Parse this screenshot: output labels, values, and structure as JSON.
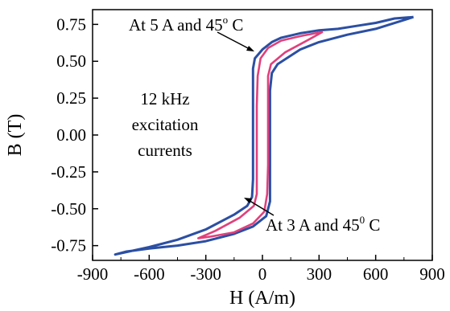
{
  "chart_data": {
    "type": "line",
    "xlabel": "H (A/m)",
    "ylabel": "B (T)",
    "xlim": [
      -900,
      900
    ],
    "ylim": [
      -0.85,
      0.85
    ],
    "xticks": [
      -900,
      -600,
      -300,
      0,
      300,
      600,
      900
    ],
    "xtick_labels": [
      "-900",
      "-600",
      "-300",
      "0",
      "300",
      "600",
      "900"
    ],
    "yticks": [
      -0.75,
      -0.5,
      -0.25,
      0.0,
      0.25,
      0.5,
      0.75
    ],
    "ytick_labels": [
      "-0.75",
      "-0.50",
      "-0.25",
      "0.00",
      "0.25",
      "0.50",
      "0.75"
    ],
    "grid": false,
    "series": [
      {
        "color": "#2b4fa3",
        "points": [
          [
            800,
            0.8
          ],
          [
            700,
            0.79
          ],
          [
            600,
            0.76
          ],
          [
            500,
            0.74
          ],
          [
            400,
            0.72
          ],
          [
            300,
            0.71
          ],
          [
            200,
            0.69
          ],
          [
            100,
            0.66
          ],
          [
            50,
            0.63
          ],
          [
            0,
            0.58
          ],
          [
            -40,
            0.52
          ],
          [
            -50,
            0.45
          ],
          [
            -50,
            0.3
          ],
          [
            -50,
            0.1
          ],
          [
            -50,
            -0.1
          ],
          [
            -50,
            -0.3
          ],
          [
            -55,
            -0.42
          ],
          [
            -80,
            -0.48
          ],
          [
            -150,
            -0.54
          ],
          [
            -300,
            -0.64
          ],
          [
            -450,
            -0.71
          ],
          [
            -600,
            -0.76
          ],
          [
            -780,
            -0.81
          ],
          [
            -720,
            -0.79
          ],
          [
            -600,
            -0.77
          ],
          [
            -450,
            -0.75
          ],
          [
            -300,
            -0.72
          ],
          [
            -150,
            -0.67
          ],
          [
            -50,
            -0.62
          ],
          [
            20,
            -0.55
          ],
          [
            40,
            -0.45
          ],
          [
            40,
            -0.3
          ],
          [
            40,
            -0.1
          ],
          [
            40,
            0.1
          ],
          [
            40,
            0.3
          ],
          [
            50,
            0.42
          ],
          [
            80,
            0.48
          ],
          [
            200,
            0.58
          ],
          [
            300,
            0.63
          ],
          [
            450,
            0.68
          ],
          [
            600,
            0.72
          ],
          [
            800,
            0.8
          ]
        ]
      },
      {
        "color": "#e0407b",
        "points": [
          [
            320,
            0.7
          ],
          [
            200,
            0.67
          ],
          [
            100,
            0.64
          ],
          [
            30,
            0.59
          ],
          [
            -10,
            0.52
          ],
          [
            -25,
            0.4
          ],
          [
            -30,
            0.2
          ],
          [
            -30,
            0.0
          ],
          [
            -30,
            -0.2
          ],
          [
            -30,
            -0.4
          ],
          [
            -45,
            -0.48
          ],
          [
            -120,
            -0.56
          ],
          [
            -250,
            -0.65
          ],
          [
            -340,
            -0.7
          ],
          [
            -280,
            -0.69
          ],
          [
            -150,
            -0.66
          ],
          [
            -50,
            -0.6
          ],
          [
            10,
            -0.52
          ],
          [
            25,
            -0.4
          ],
          [
            30,
            -0.2
          ],
          [
            30,
            0.0
          ],
          [
            30,
            0.2
          ],
          [
            30,
            0.4
          ],
          [
            45,
            0.48
          ],
          [
            120,
            0.56
          ],
          [
            250,
            0.65
          ],
          [
            320,
            0.7
          ]
        ]
      }
    ],
    "annotations": [
      {
        "text": "At 5 A and 45",
        "sup": "o",
        "suffix": " C"
      },
      {
        "text": "At 3 A and 45",
        "sup": "0",
        "suffix": " C"
      },
      {
        "lines": [
          "12 kHz",
          "excitation",
          "currents"
        ]
      }
    ]
  }
}
